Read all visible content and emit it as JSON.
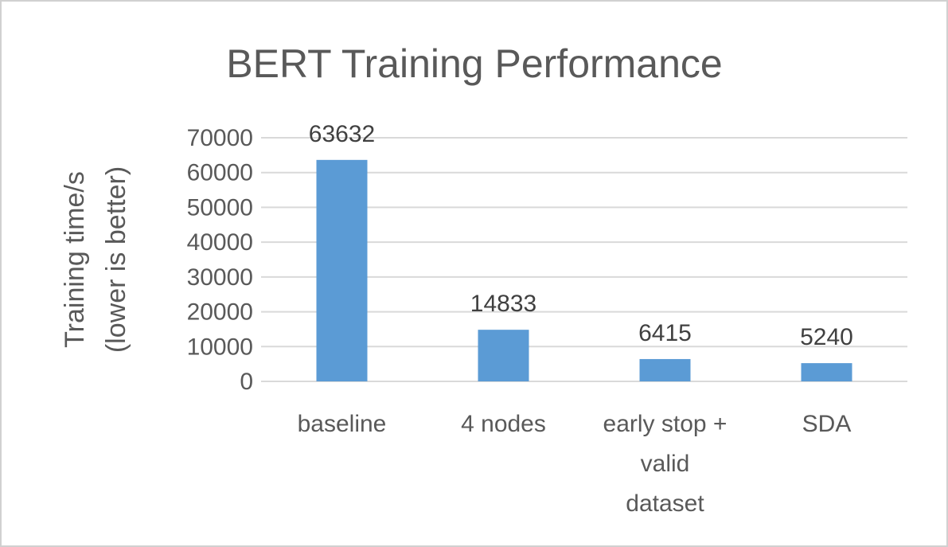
{
  "chart_data": {
    "type": "bar",
    "title": "BERT Training Performance",
    "ylabel_lines": [
      "Training time/s",
      "(lower is better)"
    ],
    "categories": [
      [
        "baseline"
      ],
      [
        "4 nodes"
      ],
      [
        "early stop +",
        "valid",
        "dataset"
      ],
      [
        "SDA"
      ]
    ],
    "values": [
      63632,
      14833,
      6415,
      5240
    ],
    "data_labels": [
      "63632",
      "14833",
      "6415",
      "5240"
    ],
    "ylim": [
      0,
      70000
    ],
    "yticks": [
      0,
      10000,
      20000,
      30000,
      40000,
      50000,
      60000,
      70000
    ],
    "grid": true,
    "legend": "none",
    "colors": {
      "bar": "#5b9bd5",
      "grid": "#d9d9d9",
      "text": "#595959"
    }
  }
}
